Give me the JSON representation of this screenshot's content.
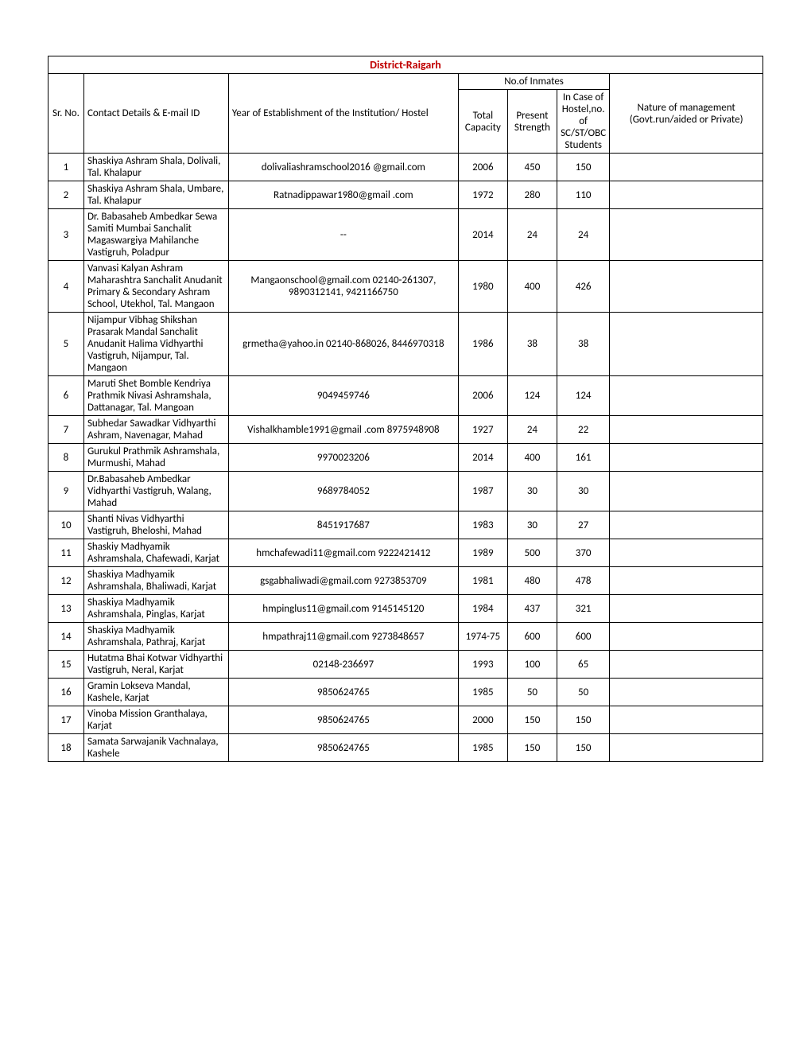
{
  "title": "District-Raigarh",
  "headers": {
    "sr": "Sr. No.",
    "contact": "Contact Details & E-mail ID",
    "year": "Year of Establishment of the Institution/ Hostel",
    "inmates": "No.of Inmates",
    "total": "Total Capacity",
    "present": "Present Strength",
    "scst": "In Case of Hostel,no.of SC/ST/OBC Students",
    "nature": "Nature of management (Govt.run/aided or Private)"
  },
  "rows": [
    {
      "sr": "1",
      "contact": "Shaskiya Ashram Shala, Dolivali, Tal. Khalapur",
      "year": "dolivaliashramschool2016 @gmail.com",
      "tc": "2006",
      "ps": "450",
      "sc": "150",
      "nm": ""
    },
    {
      "sr": "2",
      "contact": "Shaskiya Ashram Shala, Umbare, Tal. Khalapur",
      "year": "Ratnadippawar1980@gmail .com",
      "tc": "1972",
      "ps": "280",
      "sc": "110",
      "nm": ""
    },
    {
      "sr": "3",
      "contact": "Dr. Babasaheb Ambedkar Sewa Samiti Mumbai Sanchalit Magaswargiya Mahilanche Vastigruh, Poladpur",
      "year": "--",
      "tc": "2014",
      "ps": "24",
      "sc": "24",
      "nm": ""
    },
    {
      "sr": "4",
      "contact": "Vanvasi Kalyan Ashram Maharashtra Sanchalit Anudanit Primary & Secondary Ashram School, Utekhol, Tal. Mangaon",
      "year": "Mangaonschool@gmail.com  02140-261307, 9890312141, 9421166750",
      "tc": "1980",
      "ps": "400",
      "sc": "426",
      "nm": ""
    },
    {
      "sr": "5",
      "contact": "Nijampur Vibhag Shikshan Prasarak Mandal Sanchalit Anudanit Halima Vidhyarthi Vastigruh, Nijampur, Tal. Mangaon",
      "year": "grmetha@yahoo.in 02140-868026, 8446970318",
      "tc": "1986",
      "ps": "38",
      "sc": "38",
      "nm": ""
    },
    {
      "sr": "6",
      "contact": "Maruti Shet Bomble Kendriya Prathmik Nivasi Ashramshala, Dattanagar, Tal. Mangoan",
      "year": "9049459746",
      "tc": "2006",
      "ps": "124",
      "sc": "124",
      "nm": ""
    },
    {
      "sr": "7",
      "contact": "Subhedar Sawadkar Vidhyarthi Ashram, Navenagar, Mahad",
      "year": "Vishalkhamble1991@gmail .com  8975948908",
      "tc": "1927",
      "ps": "24",
      "sc": "22",
      "nm": ""
    },
    {
      "sr": "8",
      "contact": "Gurukul Prathmik Ashramshala, Murmushi, Mahad",
      "year": "9970023206",
      "tc": "2014",
      "ps": "400",
      "sc": "161",
      "nm": ""
    },
    {
      "sr": "9",
      "contact": "Dr.Babasaheb Ambedkar Vidhyarthi Vastigruh, Walang, Mahad",
      "year": "9689784052",
      "tc": "1987",
      "ps": "30",
      "sc": "30",
      "nm": ""
    },
    {
      "sr": "10",
      "contact": "Shanti Nivas Vidhyarthi Vastigruh, Bheloshi, Mahad",
      "year": "8451917687",
      "tc": "1983",
      "ps": "30",
      "sc": "27",
      "nm": ""
    },
    {
      "sr": "11",
      "contact": "Shaskiy Madhyamik Ashramshala, Chafewadi, Karjat",
      "year": "hmchafewadi11@gmail.com 9222421412",
      "tc": "1989",
      "ps": "500",
      "sc": "370",
      "nm": ""
    },
    {
      "sr": "12",
      "contact": "Shaskiya Madhyamik Ashramshala, Bhaliwadi, Karjat",
      "year": "gsgabhaliwadi@gmail.com 9273853709",
      "tc": "1981",
      "ps": "480",
      "sc": "478",
      "nm": ""
    },
    {
      "sr": "13",
      "contact": "Shaskiya Madhyamik Ashramshala, Pinglas, Karjat",
      "year": "hmpinglus11@gmail.com 9145145120",
      "tc": "1984",
      "ps": "437",
      "sc": "321",
      "nm": ""
    },
    {
      "sr": "14",
      "contact": "Shaskiya Madhyamik Ashramshala, Pathraj, Karjat",
      "year": "hmpathraj11@gmail.com 9273848657",
      "tc": "1974-75",
      "ps": "600",
      "sc": "600",
      "nm": ""
    },
    {
      "sr": "15",
      "contact": "Hutatma Bhai Kotwar Vidhyarthi Vastigruh, Neral, Karjat",
      "year": "02148-236697",
      "tc": "1993",
      "ps": "100",
      "sc": "65",
      "nm": ""
    },
    {
      "sr": "16",
      "contact": "Gramin Lokseva Mandal, Kashele, Karjat",
      "year": "9850624765",
      "tc": "1985",
      "ps": "50",
      "sc": "50",
      "nm": ""
    },
    {
      "sr": "17",
      "contact": "Vinoba Mission Granthalaya, Karjat",
      "year": "9850624765",
      "tc": "2000",
      "ps": "150",
      "sc": "150",
      "nm": ""
    },
    {
      "sr": "18",
      "contact": "Samata Sarwajanik Vachnalaya, Kashele",
      "year": "9850624765",
      "tc": "1985",
      "ps": "150",
      "sc": "150",
      "nm": ""
    }
  ]
}
